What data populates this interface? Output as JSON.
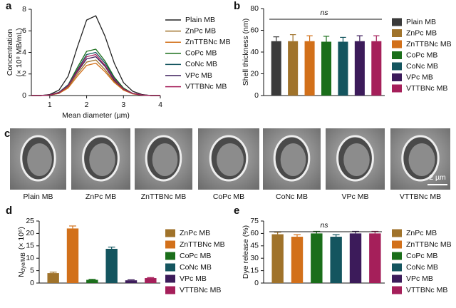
{
  "chart_data": [
    {
      "type": "line",
      "panel": "a",
      "xlabel": "Mean diameter (µm)",
      "ylabel": "Concentration",
      "ylabel_unit": "(× 10⁸ MB/mL)",
      "xlim": [
        0.5,
        4
      ],
      "xticks": [
        1,
        2,
        3,
        4
      ],
      "ylim": [
        0,
        8
      ],
      "yticks": [
        0,
        2,
        4,
        6,
        8
      ],
      "x": [
        0.5,
        0.75,
        1,
        1.25,
        1.5,
        1.75,
        2,
        2.25,
        2.5,
        2.75,
        3,
        3.25,
        3.5,
        3.75,
        4
      ],
      "series": [
        {
          "name": "Plain MB",
          "color": "#222222",
          "values": [
            0,
            0,
            0.1,
            0.5,
            1.8,
            4.5,
            7,
            7.4,
            5.5,
            3,
            1.2,
            0.4,
            0.1,
            0,
            0
          ]
        },
        {
          "name": "ZnPc MB",
          "color": "#a0732b",
          "values": [
            0,
            0,
            0.05,
            0.2,
            0.8,
            2,
            3.1,
            3.3,
            2.4,
            1.3,
            0.5,
            0.2,
            0.05,
            0,
            0
          ]
        },
        {
          "name": "ZnTTBNc MB",
          "color": "#d2701a",
          "values": [
            0,
            0,
            0.04,
            0.2,
            0.7,
            1.8,
            2.8,
            3,
            2.2,
            1.2,
            0.5,
            0.15,
            0.04,
            0,
            0
          ]
        },
        {
          "name": "CoPc MB",
          "color": "#1a6e1a",
          "values": [
            0,
            0,
            0.06,
            0.3,
            1,
            2.6,
            4.1,
            4.3,
            3.2,
            1.7,
            0.7,
            0.2,
            0.06,
            0,
            0
          ]
        },
        {
          "name": "CoNc MB",
          "color": "#14555f",
          "values": [
            0,
            0,
            0.06,
            0.3,
            1,
            2.4,
            3.8,
            4,
            3,
            1.6,
            0.6,
            0.2,
            0.06,
            0,
            0
          ]
        },
        {
          "name": "VPc MB",
          "color": "#3c1b5a",
          "values": [
            0,
            0,
            0.05,
            0.25,
            0.9,
            2.2,
            3.4,
            3.6,
            2.7,
            1.4,
            0.6,
            0.2,
            0.05,
            0,
            0
          ]
        },
        {
          "name": "VTTBNc MB",
          "color": "#a51f5a",
          "values": [
            0,
            0,
            0.05,
            0.27,
            0.9,
            2.3,
            3.6,
            3.8,
            2.8,
            1.5,
            0.6,
            0.2,
            0.05,
            0,
            0
          ]
        }
      ]
    },
    {
      "type": "bar",
      "panel": "b",
      "ylabel": "Shell thickness (nm)",
      "annotation": "ns",
      "ylim": [
        0,
        80
      ],
      "yticks": [
        0,
        20,
        40,
        60,
        80
      ],
      "series": [
        {
          "name": "Plain MB",
          "color": "#3a3a3a",
          "values": [
            50
          ],
          "errors": [
            4
          ]
        },
        {
          "name": "ZnPc MB",
          "color": "#a0732b",
          "values": [
            50
          ],
          "errors": [
            6
          ]
        },
        {
          "name": "ZnTTBNc MB",
          "color": "#d2701a",
          "values": [
            50
          ],
          "errors": [
            5
          ]
        },
        {
          "name": "CoPc MB",
          "color": "#1a6e1a",
          "values": [
            49.5
          ],
          "errors": [
            5
          ]
        },
        {
          "name": "CoNc MB",
          "color": "#14555f",
          "values": [
            49.5
          ],
          "errors": [
            4
          ]
        },
        {
          "name": "VPc MB",
          "color": "#3c1b5a",
          "values": [
            50
          ],
          "errors": [
            5
          ]
        },
        {
          "name": "VTTBNc MB",
          "color": "#a51f5a",
          "values": [
            50
          ],
          "errors": [
            5
          ]
        }
      ]
    },
    {
      "type": "bar",
      "panel": "d",
      "ylabel": "N",
      "ylabel_subscript": "dye/MB",
      "ylabel_unit": "(× 10⁶)",
      "ylim": [
        0,
        25
      ],
      "yticks": [
        0,
        5,
        10,
        15,
        20,
        25
      ],
      "series": [
        {
          "name": "ZnPc MB",
          "color": "#a0732b",
          "values": [
            4
          ],
          "errors": [
            0.4
          ]
        },
        {
          "name": "ZnTTBNc MB",
          "color": "#d2701a",
          "values": [
            22
          ],
          "errors": [
            1
          ]
        },
        {
          "name": "CoPc MB",
          "color": "#1a6e1a",
          "values": [
            1.3
          ],
          "errors": [
            0.2
          ]
        },
        {
          "name": "CoNc MB",
          "color": "#14555f",
          "values": [
            13.8
          ],
          "errors": [
            0.7
          ]
        },
        {
          "name": "VPc MB",
          "color": "#3c1b5a",
          "values": [
            1.1
          ],
          "errors": [
            0.2
          ]
        },
        {
          "name": "VTTBNc MB",
          "color": "#a51f5a",
          "values": [
            2
          ],
          "errors": [
            0.2
          ]
        }
      ]
    },
    {
      "type": "bar",
      "panel": "e",
      "ylabel": "Dye release (%)",
      "annotation": "ns",
      "ylim": [
        0,
        75
      ],
      "yticks": [
        0,
        15,
        30,
        45,
        60,
        75
      ],
      "series": [
        {
          "name": "ZnPc MB",
          "color": "#a0732b",
          "values": [
            59
          ],
          "errors": [
            2.5
          ]
        },
        {
          "name": "ZnTTBNc MB",
          "color": "#d2701a",
          "values": [
            56
          ],
          "errors": [
            2.5
          ]
        },
        {
          "name": "CoPc MB",
          "color": "#1a6e1a",
          "values": [
            60
          ],
          "errors": [
            2.5
          ]
        },
        {
          "name": "CoNc MB",
          "color": "#14555f",
          "values": [
            56
          ],
          "errors": [
            2.5
          ]
        },
        {
          "name": "VPc MB",
          "color": "#3c1b5a",
          "values": [
            60
          ],
          "errors": [
            2.5
          ]
        },
        {
          "name": "VTTBNc MB",
          "color": "#a51f5a",
          "values": [
            60
          ],
          "errors": [
            2.5
          ]
        }
      ]
    }
  ],
  "images_panel": {
    "panel": "c",
    "labels": [
      "Plain MB",
      "ZnPc MB",
      "ZnTTBNc MB",
      "CoPc MB",
      "CoNc MB",
      "VPc MB",
      "VTTBNc MB"
    ],
    "scale_bar": "2 µm"
  }
}
